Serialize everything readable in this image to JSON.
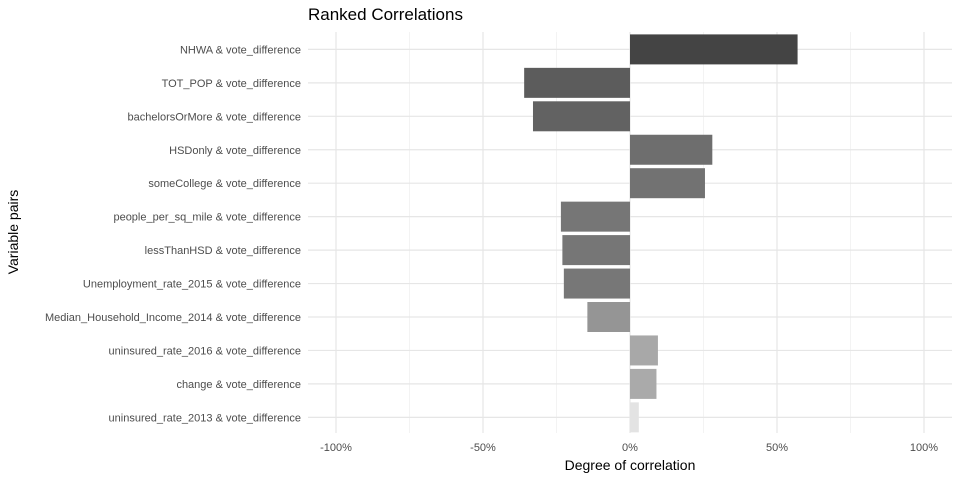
{
  "chart_data": {
    "type": "bar",
    "orientation": "horizontal",
    "title": "Ranked Correlations",
    "xlabel": "Degree of correlation",
    "ylabel": "Variable pairs",
    "xlim": [
      -1.1,
      1.1
    ],
    "xticks": [
      -1,
      -0.5,
      0,
      0.5,
      1
    ],
    "xtick_labels": [
      "-100%",
      "-50%",
      "0%",
      "50%",
      "100%"
    ],
    "grid": true,
    "legend": "none",
    "categories": [
      "NHWA & vote_difference",
      "TOT_POP & vote_difference",
      "bachelorsOrMore & vote_difference",
      "HSDonly & vote_difference",
      "someCollege & vote_difference",
      "people_per_sq_mile & vote_difference",
      "lessThanHSD & vote_difference",
      "Unemployment_rate_2015 & vote_difference",
      "Median_Household_Income_2014 & vote_difference",
      "uninsured_rate_2016 & vote_difference",
      "change & vote_difference",
      "uninsured_rate_2013 & vote_difference"
    ],
    "values": [
      0.57,
      -0.36,
      -0.33,
      0.28,
      0.255,
      -0.235,
      -0.23,
      -0.225,
      -0.145,
      0.095,
      0.09,
      0.03
    ],
    "bar_colors": [
      "#444444",
      "#5c5c5c",
      "#626262",
      "#6e6e6e",
      "#727272",
      "#767676",
      "#767676",
      "#777777",
      "#959595",
      "#a8a8a8",
      "#aaaaaa",
      "#e3e3e3"
    ]
  }
}
